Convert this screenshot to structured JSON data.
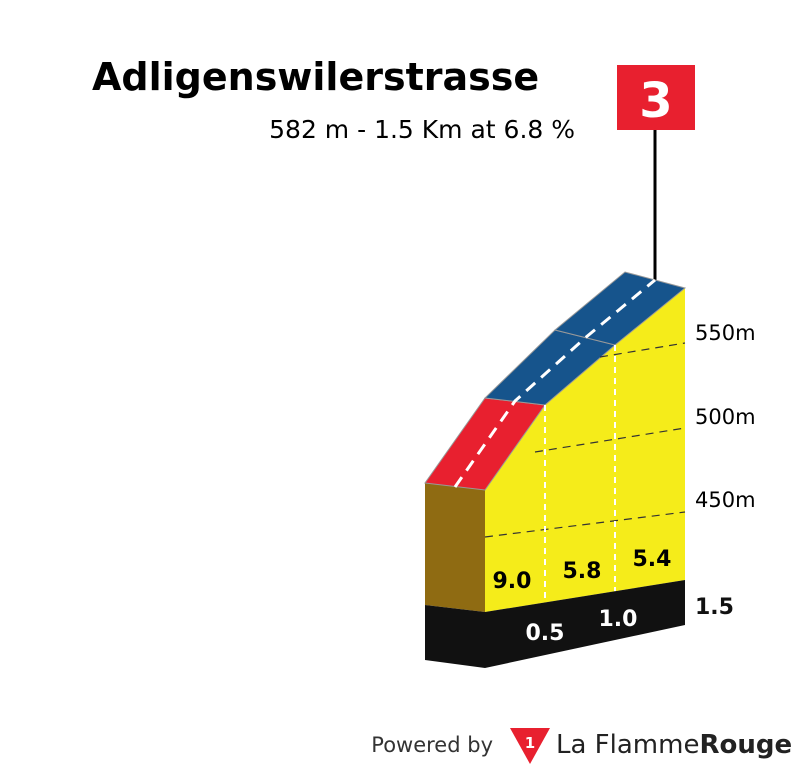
{
  "header": {
    "title": "Adligenswilerstrasse",
    "subtitle": "582 m - 1.5 Km at 6.8 %"
  },
  "category_badge": "3",
  "elevation_labels": [
    "550m",
    "500m",
    "450m"
  ],
  "gradients": [
    "9.0",
    "5.8",
    "5.4"
  ],
  "km_markers": [
    "0.5",
    "1.0",
    "1.5"
  ],
  "footer": {
    "powered_by": "Powered by",
    "brand_logo": "1",
    "brand_name": "La Flamme",
    "brand_name_bold": "Rouge"
  }
}
